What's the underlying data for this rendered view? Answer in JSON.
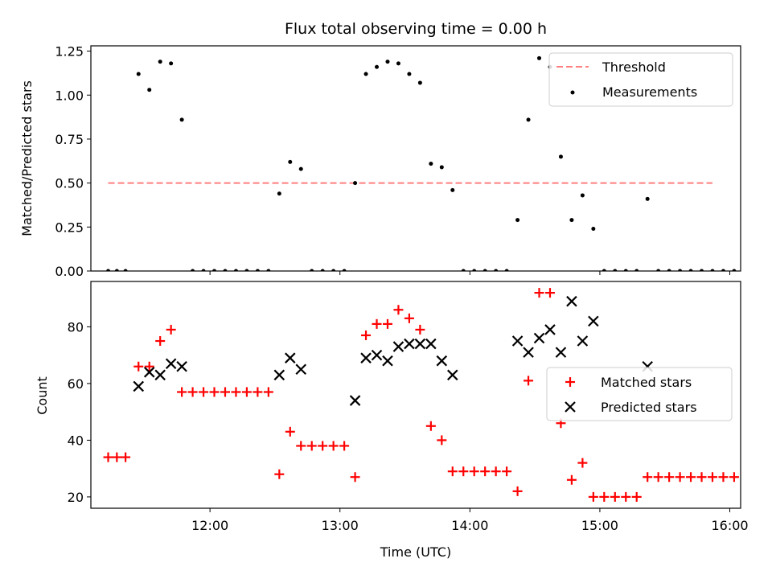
{
  "chart_data": [
    {
      "type": "scatter",
      "title": "Flux total observing time = 0.00 h",
      "xlabel": "",
      "ylabel": "Matched/Predicted stars",
      "x_ticks": [
        "12:00",
        "13:00",
        "14:00",
        "15:00",
        "16:00"
      ],
      "x_tick_labels_shown": false,
      "xlim": [
        "11:05",
        "16:05"
      ],
      "ylim": [
        0,
        1.28
      ],
      "y_ticks": [
        0.0,
        0.25,
        0.5,
        0.75,
        1.0,
        1.25
      ],
      "y_tick_labels": [
        "0.00",
        "0.25",
        "0.50",
        "0.75",
        "1.00",
        "1.25"
      ],
      "legend_position": "top-right",
      "series": [
        {
          "name": "Threshold",
          "kind": "dashed-line",
          "color": "#ff7f7f",
          "points": [
            [
              "11:13",
              0.5
            ],
            [
              "15:52",
              0.5
            ]
          ]
        },
        {
          "name": "Measurements",
          "kind": "dots",
          "color": "#000000",
          "points": [
            [
              "11:13",
              0
            ],
            [
              "11:17",
              0
            ],
            [
              "11:21",
              0
            ],
            [
              "11:27",
              1.12
            ],
            [
              "11:32",
              1.03
            ],
            [
              "11:37",
              1.19
            ],
            [
              "11:42",
              1.18
            ],
            [
              "11:47",
              0.86
            ],
            [
              "11:52",
              0
            ],
            [
              "11:57",
              0
            ],
            [
              "12:02",
              0
            ],
            [
              "12:07",
              0
            ],
            [
              "12:12",
              0
            ],
            [
              "12:17",
              0
            ],
            [
              "12:22",
              0
            ],
            [
              "12:27",
              0
            ],
            [
              "12:32",
              0.44
            ],
            [
              "12:37",
              0.62
            ],
            [
              "12:42",
              0.58
            ],
            [
              "12:47",
              0
            ],
            [
              "12:52",
              0
            ],
            [
              "12:57",
              0
            ],
            [
              "13:02",
              0
            ],
            [
              "13:07",
              0.5
            ],
            [
              "13:12",
              1.12
            ],
            [
              "13:17",
              1.16
            ],
            [
              "13:22",
              1.19
            ],
            [
              "13:27",
              1.18
            ],
            [
              "13:32",
              1.12
            ],
            [
              "13:37",
              1.07
            ],
            [
              "13:42",
              0.61
            ],
            [
              "13:47",
              0.59
            ],
            [
              "13:52",
              0.46
            ],
            [
              "13:57",
              0
            ],
            [
              "14:02",
              0
            ],
            [
              "14:07",
              0
            ],
            [
              "14:12",
              0
            ],
            [
              "14:17",
              0
            ],
            [
              "14:22",
              0.29
            ],
            [
              "14:27",
              0.86
            ],
            [
              "14:32",
              1.21
            ],
            [
              "14:37",
              1.16
            ],
            [
              "14:42",
              0.65
            ],
            [
              "14:47",
              0.29
            ],
            [
              "14:52",
              0.43
            ],
            [
              "14:57",
              0.24
            ],
            [
              "15:02",
              0
            ],
            [
              "15:07",
              0
            ],
            [
              "15:12",
              0
            ],
            [
              "15:17",
              0
            ],
            [
              "15:22",
              0.41
            ],
            [
              "15:27",
              0
            ],
            [
              "15:32",
              0
            ],
            [
              "15:37",
              0
            ],
            [
              "15:42",
              0
            ],
            [
              "15:47",
              0
            ],
            [
              "15:52",
              0
            ],
            [
              "15:57",
              0
            ],
            [
              "16:02",
              0
            ]
          ]
        }
      ]
    },
    {
      "type": "scatter",
      "title": "",
      "xlabel": "Time (UTC)",
      "ylabel": "Count",
      "x_ticks": [
        "12:00",
        "13:00",
        "14:00",
        "15:00",
        "16:00"
      ],
      "xlim": [
        "11:05",
        "16:05"
      ],
      "ylim": [
        16,
        96
      ],
      "y_ticks": [
        20,
        40,
        60,
        80
      ],
      "legend_position": "center-right",
      "series": [
        {
          "name": "Matched stars",
          "marker": "+",
          "color": "#ff0000",
          "points": [
            [
              "11:13",
              34
            ],
            [
              "11:17",
              34
            ],
            [
              "11:21",
              34
            ],
            [
              "11:27",
              66
            ],
            [
              "11:32",
              66
            ],
            [
              "11:37",
              75
            ],
            [
              "11:42",
              79
            ],
            [
              "11:47",
              57
            ],
            [
              "11:52",
              57
            ],
            [
              "11:57",
              57
            ],
            [
              "12:02",
              57
            ],
            [
              "12:07",
              57
            ],
            [
              "12:12",
              57
            ],
            [
              "12:17",
              57
            ],
            [
              "12:22",
              57
            ],
            [
              "12:27",
              57
            ],
            [
              "12:32",
              28
            ],
            [
              "12:37",
              43
            ],
            [
              "12:42",
              38
            ],
            [
              "12:47",
              38
            ],
            [
              "12:52",
              38
            ],
            [
              "12:57",
              38
            ],
            [
              "13:02",
              38
            ],
            [
              "13:07",
              27
            ],
            [
              "13:12",
              77
            ],
            [
              "13:17",
              81
            ],
            [
              "13:22",
              81
            ],
            [
              "13:27",
              86
            ],
            [
              "13:32",
              83
            ],
            [
              "13:37",
              79
            ],
            [
              "13:42",
              45
            ],
            [
              "13:47",
              40
            ],
            [
              "13:52",
              29
            ],
            [
              "13:57",
              29
            ],
            [
              "14:02",
              29
            ],
            [
              "14:07",
              29
            ],
            [
              "14:12",
              29
            ],
            [
              "14:17",
              29
            ],
            [
              "14:22",
              22
            ],
            [
              "14:27",
              61
            ],
            [
              "14:32",
              92
            ],
            [
              "14:37",
              92
            ],
            [
              "14:42",
              46
            ],
            [
              "14:47",
              26
            ],
            [
              "14:52",
              32
            ],
            [
              "14:57",
              20
            ],
            [
              "15:02",
              20
            ],
            [
              "15:07",
              20
            ],
            [
              "15:12",
              20
            ],
            [
              "15:17",
              20
            ],
            [
              "15:22",
              27
            ],
            [
              "15:27",
              27
            ],
            [
              "15:32",
              27
            ],
            [
              "15:37",
              27
            ],
            [
              "15:42",
              27
            ],
            [
              "15:47",
              27
            ],
            [
              "15:52",
              27
            ],
            [
              "15:57",
              27
            ],
            [
              "16:02",
              27
            ]
          ]
        },
        {
          "name": "Predicted stars",
          "marker": "x",
          "color": "#000000",
          "points": [
            [
              "11:27",
              59
            ],
            [
              "11:32",
              64
            ],
            [
              "11:37",
              63
            ],
            [
              "11:42",
              67
            ],
            [
              "11:47",
              66
            ],
            [
              "12:32",
              63
            ],
            [
              "12:37",
              69
            ],
            [
              "12:42",
              65
            ],
            [
              "13:07",
              54
            ],
            [
              "13:12",
              69
            ],
            [
              "13:17",
              70
            ],
            [
              "13:22",
              68
            ],
            [
              "13:27",
              73
            ],
            [
              "13:32",
              74
            ],
            [
              "13:37",
              74
            ],
            [
              "13:42",
              74
            ],
            [
              "13:47",
              68
            ],
            [
              "13:52",
              63
            ],
            [
              "14:22",
              75
            ],
            [
              "14:27",
              71
            ],
            [
              "14:32",
              76
            ],
            [
              "14:37",
              79
            ],
            [
              "14:42",
              71
            ],
            [
              "14:47",
              89
            ],
            [
              "14:52",
              75
            ],
            [
              "14:57",
              82
            ],
            [
              "15:22",
              66
            ]
          ]
        }
      ]
    }
  ]
}
